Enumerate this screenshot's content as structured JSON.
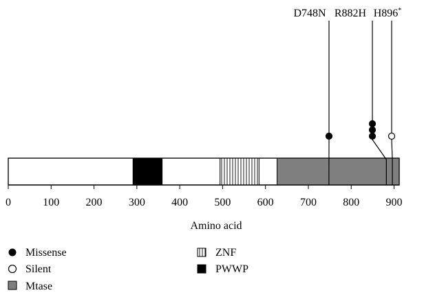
{
  "chart_data": {
    "type": "protein-domain-map",
    "xlabel": "Amino acid",
    "xlim": [
      0,
      912
    ],
    "ticks": [
      0,
      100,
      200,
      300,
      400,
      500,
      600,
      700,
      800,
      900
    ],
    "tick_labels": [
      "0",
      "100",
      "200",
      "300",
      "400",
      "500",
      "600",
      "700",
      "800",
      "900"
    ],
    "domains": [
      {
        "name": "PWWP",
        "start": 291,
        "end": 359,
        "fill": "solid-black"
      },
      {
        "name": "ZNF",
        "start": 494,
        "end": 585,
        "fill": "vertical-stripes"
      },
      {
        "name": "Mtase",
        "start": 627,
        "end": 912,
        "fill": "gray"
      }
    ],
    "mutations": [
      {
        "label": "D748N",
        "position": 748,
        "missense_count": 1,
        "silent_count": 0,
        "superscript": ""
      },
      {
        "label": "R882H",
        "position": 882,
        "missense_count": 3,
        "silent_count": 0,
        "superscript": ""
      },
      {
        "label": "H896",
        "position": 896,
        "missense_count": 0,
        "silent_count": 1,
        "superscript": "*"
      }
    ],
    "legend": [
      {
        "key": "missense",
        "label": "Missense",
        "symbol": "filled-circle"
      },
      {
        "key": "silent",
        "label": "Silent",
        "symbol": "open-circle"
      },
      {
        "key": "mtase",
        "label": "Mtase",
        "symbol": "gray-square"
      },
      {
        "key": "znf",
        "label": "ZNF",
        "symbol": "striped-square"
      },
      {
        "key": "pwwp",
        "label": "PWWP",
        "symbol": "black-square"
      }
    ],
    "colors": {
      "mtase": "#7f7f7f",
      "pwwp": "#000000",
      "outline": "#000000",
      "background": "#ffffff"
    }
  }
}
